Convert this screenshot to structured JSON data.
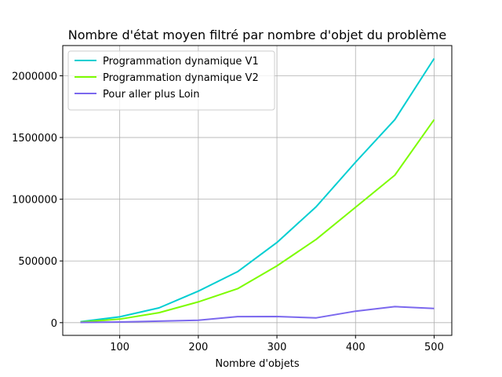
{
  "chart_data": {
    "type": "line",
    "title": "Nombre d'état moyen filtré par nombre d'objet du problème",
    "xlabel": "Nombre d'objets",
    "ylabel": "",
    "x": [
      50,
      100,
      150,
      200,
      250,
      300,
      350,
      400,
      450,
      500
    ],
    "xlim": [
      27.5,
      522.5
    ],
    "ylim": [
      -103000,
      2245000
    ],
    "xticks": [
      100,
      200,
      300,
      400,
      500
    ],
    "xtick_labels": [
      "100",
      "200",
      "300",
      "400",
      "500"
    ],
    "yticks": [
      0,
      500000,
      1000000,
      1500000,
      2000000
    ],
    "ytick_labels": [
      "0",
      "500000",
      "1000000",
      "1500000",
      "2000000"
    ],
    "grid": true,
    "legend": {
      "location": "upper-left"
    },
    "series": [
      {
        "name": "Programmation dynamique V1",
        "color": "#00CED1",
        "values": [
          8000,
          47000,
          120000,
          255000,
          413000,
          650000,
          940000,
          1300000,
          1645000,
          2140000
        ]
      },
      {
        "name": "Programmation dynamique V2",
        "color": "#7CFC00",
        "values": [
          5000,
          29000,
          81000,
          168000,
          275000,
          460000,
          675000,
          935000,
          1195000,
          1645000
        ]
      },
      {
        "name": "Pour aller plus Loin",
        "color": "#7B68EE",
        "values": [
          2000,
          5000,
          12000,
          20000,
          49000,
          50000,
          39000,
          93000,
          130000,
          115000
        ]
      }
    ]
  }
}
